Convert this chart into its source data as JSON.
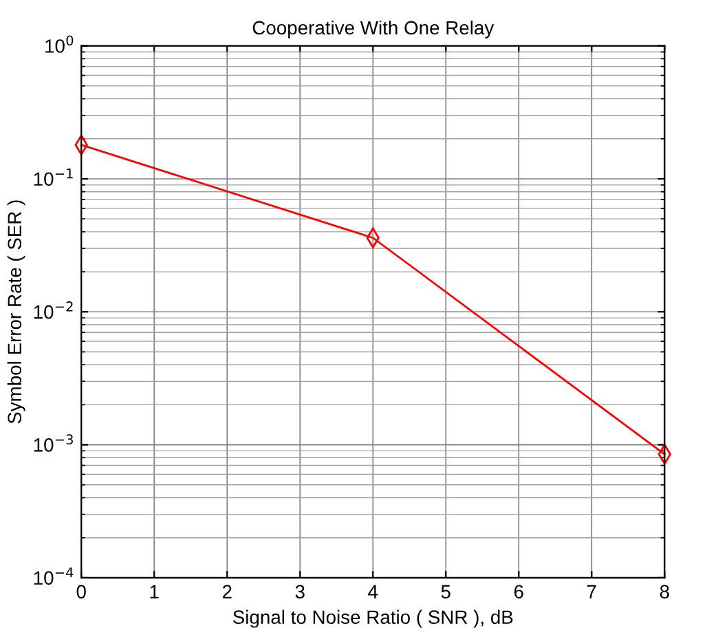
{
  "chart_data": {
    "type": "line",
    "title": "Cooperative With One Relay",
    "xlabel": "Signal to Noise Ratio ( SNR ), dB",
    "ylabel": "Symbol Error Rate ( SER )",
    "x": [
      0,
      4,
      8
    ],
    "series": [
      {
        "color": "#ff0000",
        "values": [
          0.18,
          0.036,
          0.00085
        ]
      }
    ],
    "marker": "diamond",
    "line_style": "solid",
    "log": "y",
    "grid": true,
    "xlim": [
      0,
      8
    ],
    "xticks": [
      0,
      1,
      2,
      3,
      4,
      5,
      6,
      7,
      8
    ],
    "ylim": [
      0.0001,
      1
    ],
    "yticks": [
      {
        "value": 0.0001,
        "label": "10$^{−4}$"
      },
      {
        "value": 0.001,
        "label": "10$^{−3}$"
      },
      {
        "value": 0.01,
        "label": "10$^{−2}$"
      },
      {
        "value": 0.1,
        "label": "10$^{−1}$"
      },
      {
        "value": 1,
        "label": "10$^{0}$"
      }
    ]
  }
}
